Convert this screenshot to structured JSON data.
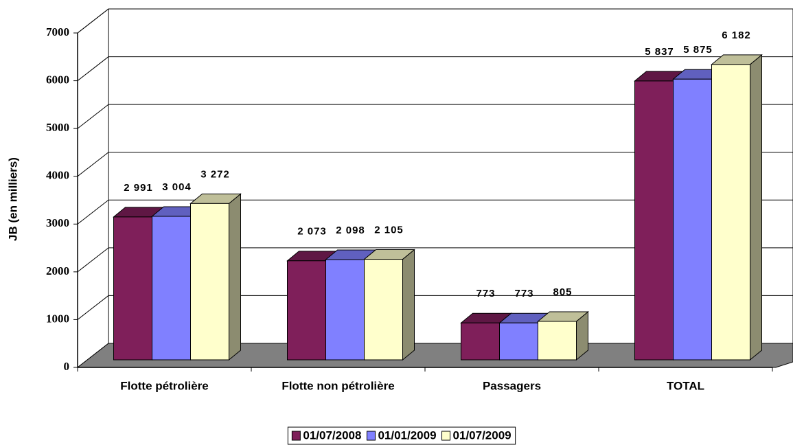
{
  "chart_data": {
    "type": "bar3d",
    "y_label": "JB (en milliers)",
    "categories": [
      "Flotte pétrolière",
      "Flotte non pétrolière",
      "Passagers",
      "TOTAL"
    ],
    "series": [
      {
        "name": "01/07/2008",
        "color": "#7f1f5a",
        "values": [
          2991,
          2073,
          773,
          5837
        ],
        "value_labels": [
          "2 991",
          "2 073",
          "773",
          "5 837"
        ]
      },
      {
        "name": "01/01/2009",
        "color": "#8080ff",
        "values": [
          3004,
          2098,
          773,
          5875
        ],
        "value_labels": [
          "3 004",
          "2 098",
          "773",
          "5 875"
        ]
      },
      {
        "name": "01/07/2009",
        "color": "#ffffcc",
        "values": [
          3272,
          2105,
          805,
          6182
        ],
        "value_labels": [
          "3 272",
          "2 105",
          "805",
          "6 182"
        ]
      }
    ],
    "ylim": [
      0,
      7000
    ],
    "yticks": [
      0,
      1000,
      2000,
      3000,
      4000,
      5000,
      6000,
      7000
    ],
    "grid": true,
    "legend": "bottom"
  }
}
